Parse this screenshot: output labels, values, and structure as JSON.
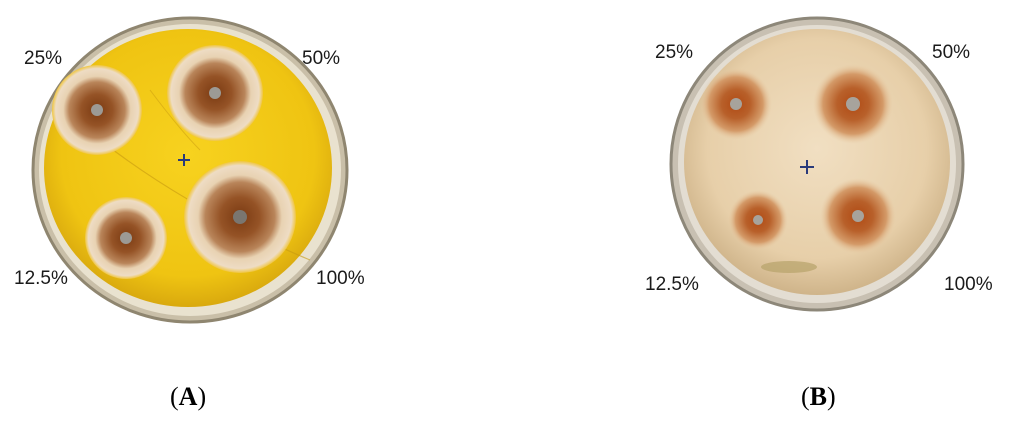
{
  "figure": {
    "panels": [
      {
        "id": "A",
        "caption_letter": "A",
        "plate_color": "#f2c91a",
        "labels": {
          "top_left": "25%",
          "top_right": "50%",
          "bottom_left": "12.5%",
          "bottom_right": "100%"
        }
      },
      {
        "id": "B",
        "caption_letter": "B",
        "plate_color": "#ecd6b6",
        "labels": {
          "top_left": "25%",
          "top_right": "50%",
          "bottom_left": "12.5%",
          "bottom_right": "100%"
        }
      }
    ],
    "caption_open": "(",
    "caption_close": ")"
  }
}
